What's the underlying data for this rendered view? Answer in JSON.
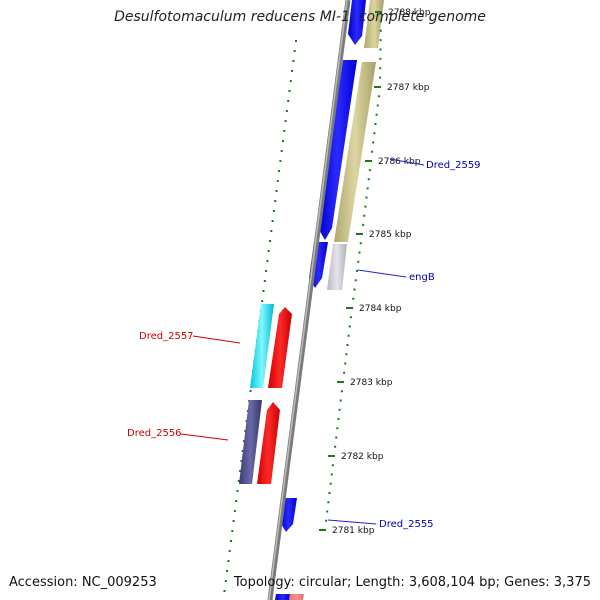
{
  "title": "Desulfotomaculum reducens MI-1, complete genome",
  "footer": {
    "accession": "Accession: NC_009253",
    "stats": "Topology: circular; Length: 3,608,104 bp; Genes: 3,375"
  },
  "ruler": [
    {
      "label": "2788 kbp"
    },
    {
      "label": "2787 kbp"
    },
    {
      "label": "2786 kbp"
    },
    {
      "label": "2785 kbp"
    },
    {
      "label": "2784 kbp"
    },
    {
      "label": "2783 kbp"
    },
    {
      "label": "2782 kbp"
    },
    {
      "label": "2781 kbp"
    }
  ],
  "genes": [
    {
      "label": "Dred_2559",
      "strand": "reverse",
      "color": "#0000bb"
    },
    {
      "label": "engB",
      "strand": "reverse",
      "color": "#0000bb"
    },
    {
      "label": "Dred_2557",
      "strand": "forward",
      "color": "#cc0000"
    },
    {
      "label": "Dred_2556",
      "strand": "forward",
      "color": "#cc0000"
    },
    {
      "label": "Dred_2555",
      "strand": "reverse",
      "color": "#0000bb"
    }
  ],
  "colors": {
    "backbone": "#8a8a8a",
    "forward_cds": "#ff0000",
    "reverse_cds": "#0000ff",
    "cog_tan": "#c8c08a",
    "cog_cyan": "#00e0f0",
    "cog_navy": "#4a4a8a",
    "cog_grey": "#c8c8d0",
    "gc_skew": "#228822"
  }
}
